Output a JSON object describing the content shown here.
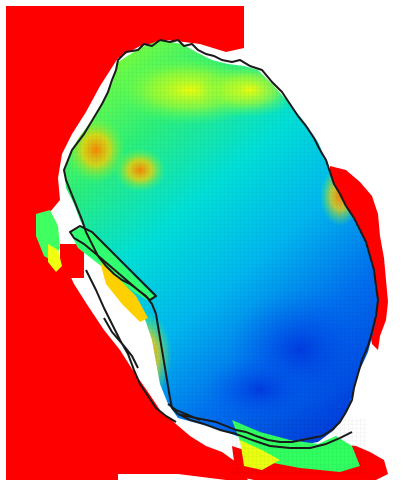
{
  "map": {
    "kind": "gridded-raster-heatmap-with-coastline-outline",
    "colors": {
      "background": "#ffffff",
      "out_of_range": "#ff0000",
      "outline": "#1a1a1a",
      "scale_low": "#0033dd",
      "scale_mid": "#00e5e5",
      "scale_high": "#ffee00"
    },
    "legend": "none",
    "labels": "none"
  }
}
